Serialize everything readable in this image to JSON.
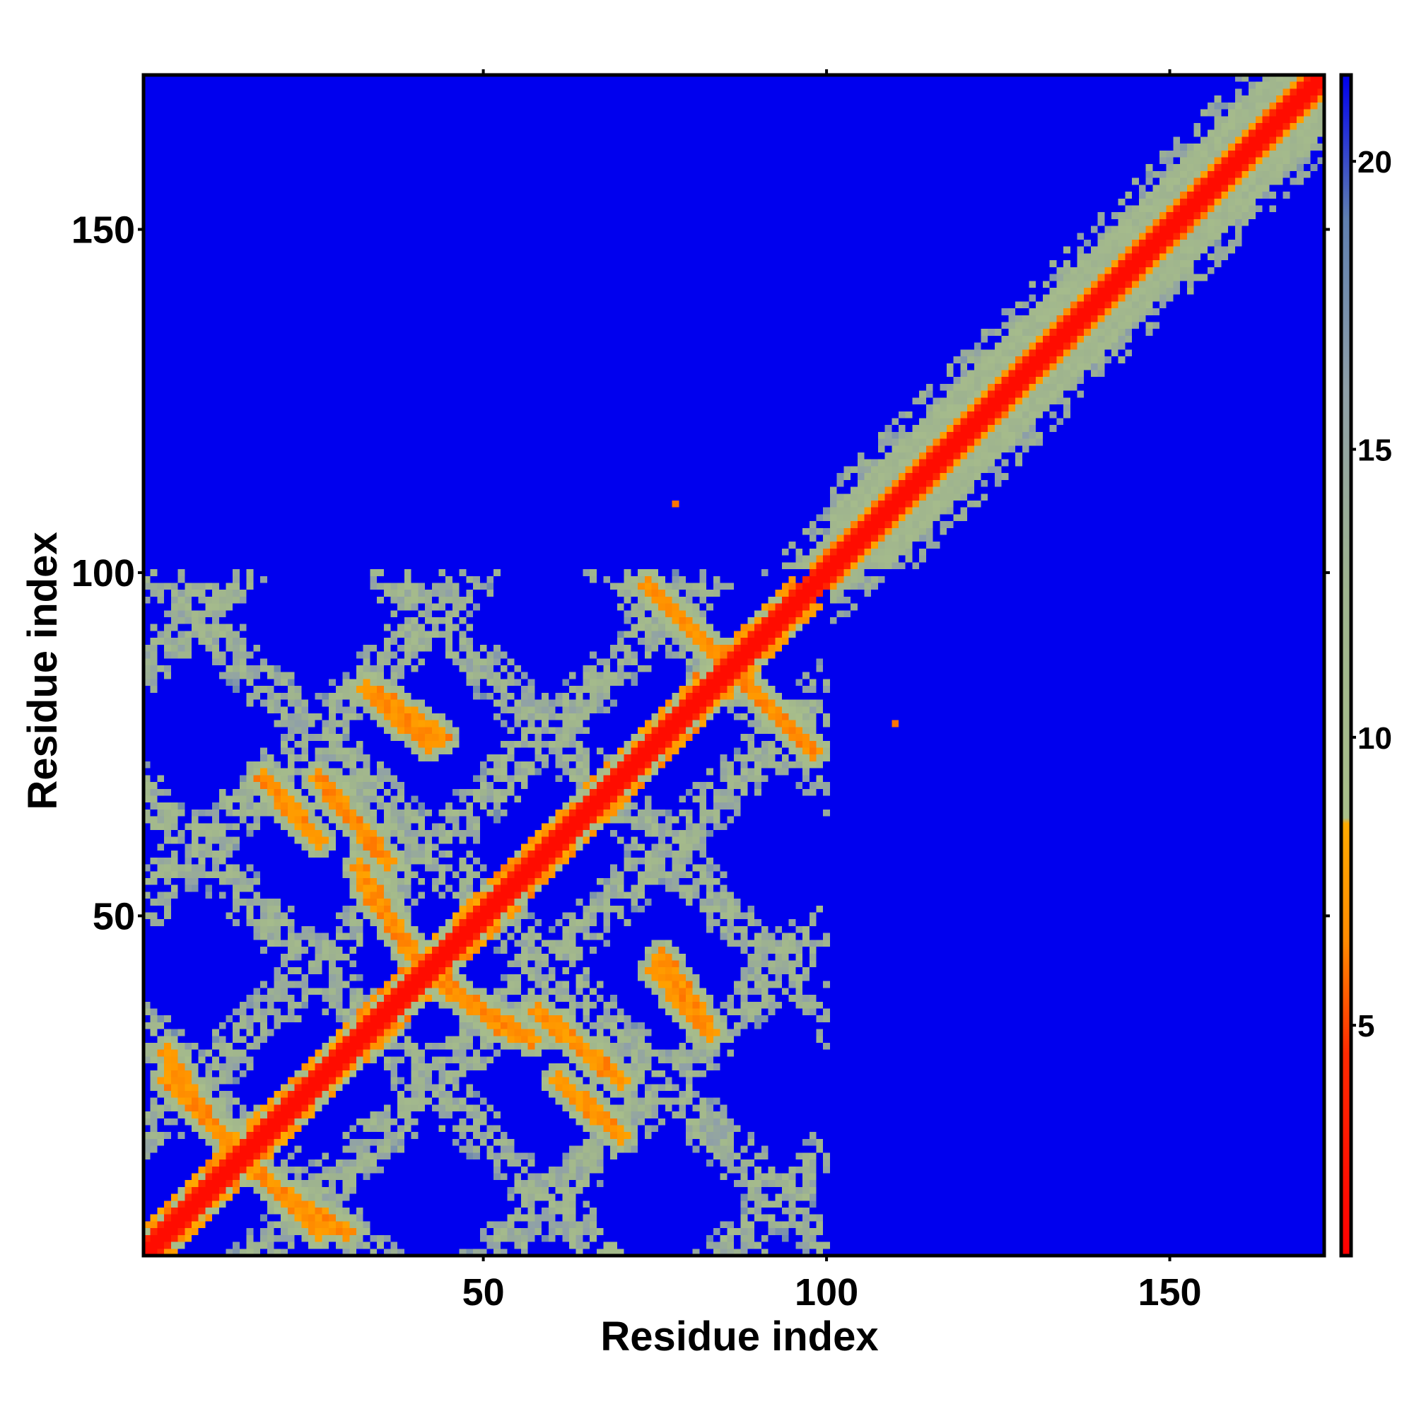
{
  "chart_data": {
    "type": "heatmap",
    "title": "",
    "xlabel": "Residue index",
    "ylabel": "Residue index",
    "n_residues": 172,
    "xlim": [
      1,
      172
    ],
    "ylim": [
      1,
      172
    ],
    "x_ticks": [
      50,
      100,
      150
    ],
    "y_ticks": [
      50,
      100,
      150
    ],
    "x_tick_labels": [
      "50",
      "100",
      "150"
    ],
    "y_tick_labels": [
      "50",
      "100",
      "150"
    ],
    "colorbar": {
      "range": [
        1,
        21.5
      ],
      "ticks": [
        5,
        10,
        15,
        20
      ],
      "tick_labels": [
        "5",
        "10",
        "15",
        "20"
      ],
      "stops": [
        {
          "value": 1,
          "color": "#ff0000"
        },
        {
          "value": 4.5,
          "color": "#ff2a00"
        },
        {
          "value": 6.5,
          "color": "#ff8c00"
        },
        {
          "value": 8.5,
          "color": "#ffaa00"
        },
        {
          "value": 8.6,
          "color": "#a9bf8a"
        },
        {
          "value": 12.5,
          "color": "#9fb48e"
        },
        {
          "value": 16,
          "color": "#8fa0a8"
        },
        {
          "value": 19,
          "color": "#5f7fb0"
        },
        {
          "value": 21.5,
          "color": "#0000ee"
        }
      ]
    },
    "background_value": 21.5,
    "diagonal_value": 2,
    "description_features": {
      "diagonal": "distance ~2 along i=j from 1 to 172",
      "helix_band": "broad band around diagonal for residues 100-172",
      "repeat_domain": "residues 1-100 show repeating lattice of contacts",
      "antiparallel_contacts": [
        {
          "from": [
            4,
            26
          ],
          "to": [
            20,
            10
          ],
          "value": 6
        },
        {
          "from": [
            20,
            10
          ],
          "to": [
            30,
            4
          ],
          "value": 6
        },
        {
          "from": [
            26,
            70
          ],
          "to": [
            36,
            58
          ],
          "value": 6
        },
        {
          "from": [
            33,
            54
          ],
          "to": [
            40,
            44
          ],
          "value": 6
        },
        {
          "from": [
            35,
            82
          ],
          "to": [
            44,
            76
          ],
          "value": 6
        },
        {
          "from": [
            47,
            38
          ],
          "to": [
            57,
            32
          ],
          "value": 6
        },
        {
          "from": [
            61,
            26
          ],
          "to": [
            70,
            18
          ],
          "value": 6
        },
        {
          "from": [
            75,
            42
          ],
          "to": [
            83,
            33
          ],
          "value": 6
        },
        {
          "from": [
            74,
            98
          ],
          "to": [
            86,
            86
          ],
          "value": 6
        },
        {
          "from": [
            86,
            86
          ],
          "to": [
            98,
            74
          ],
          "value": 6
        }
      ],
      "isolated_points": [
        {
          "x": 78,
          "y": 110,
          "value": 6
        },
        {
          "x": 110,
          "y": 78,
          "value": 6
        }
      ]
    }
  }
}
